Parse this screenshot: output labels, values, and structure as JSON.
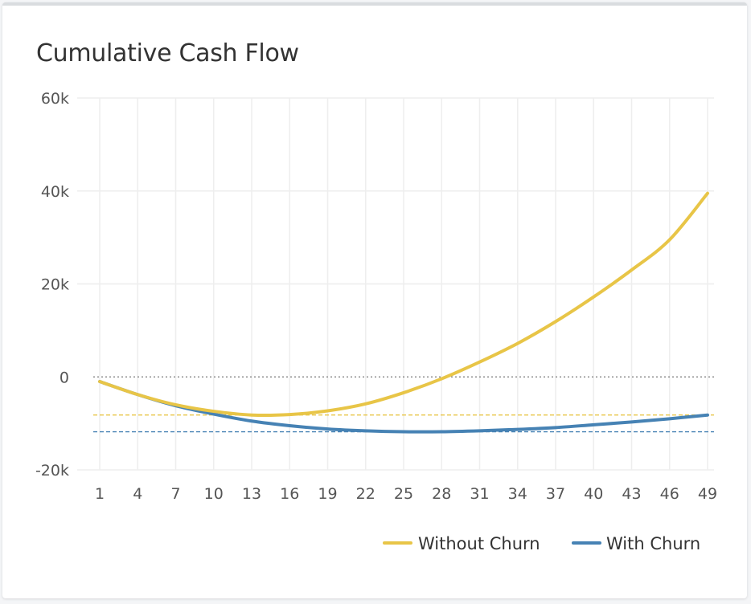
{
  "chart_data": {
    "type": "line",
    "title": "Cumulative Cash Flow",
    "xlabel": "",
    "ylabel": "",
    "x_ticks": [
      1,
      4,
      7,
      10,
      13,
      16,
      19,
      22,
      25,
      28,
      31,
      34,
      37,
      40,
      43,
      46,
      49
    ],
    "xlim": [
      1,
      49
    ],
    "y_ticks": [
      {
        "value": 60000,
        "label": "60k"
      },
      {
        "value": 40000,
        "label": "40k"
      },
      {
        "value": 20000,
        "label": "20k"
      },
      {
        "value": 0,
        "label": "0"
      },
      {
        "value": -20000,
        "label": "-20k"
      }
    ],
    "ylim": [
      -20000,
      60000
    ],
    "grid": true,
    "legend_position": "bottom-right",
    "series": [
      {
        "name": "Without Churn",
        "color": "#e8c547",
        "x": [
          1,
          4,
          7,
          10,
          13,
          16,
          19,
          22,
          25,
          28,
          31,
          34,
          37,
          40,
          43,
          46,
          49
        ],
        "y": [
          -1000,
          -3800,
          -6000,
          -7400,
          -8200,
          -8100,
          -7300,
          -5800,
          -3400,
          -400,
          3200,
          7200,
          11900,
          17200,
          23000,
          29500,
          39500
        ],
        "min_line": -8200
      },
      {
        "name": "With Churn",
        "color": "#4682b4",
        "x": [
          1,
          4,
          7,
          10,
          13,
          16,
          19,
          22,
          25,
          28,
          31,
          34,
          37,
          40,
          43,
          46,
          49
        ],
        "y": [
          -1000,
          -3800,
          -6200,
          -8000,
          -9500,
          -10500,
          -11200,
          -11600,
          -11800,
          -11800,
          -11600,
          -11300,
          -10900,
          -10300,
          -9700,
          -9000,
          -8200
        ],
        "min_line": -11800
      }
    ],
    "zero_line": 0
  }
}
